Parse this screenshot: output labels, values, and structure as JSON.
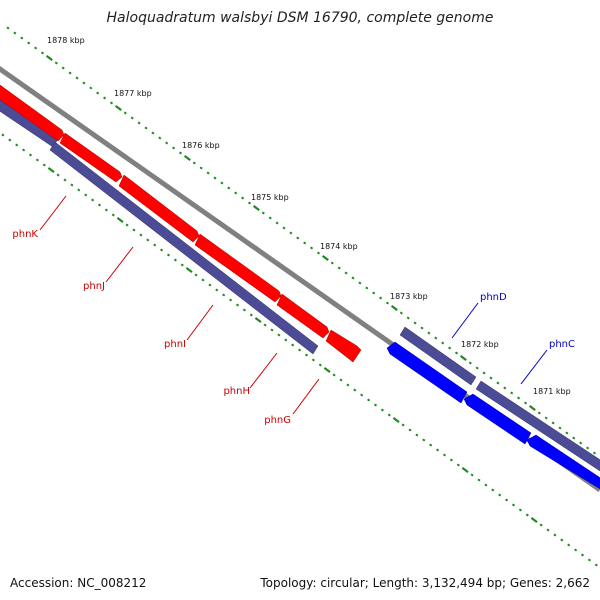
{
  "title": "Haloquadratum walsbyi DSM 16790, complete genome",
  "colors": {
    "tick": "#1f8a1f",
    "backbone": "#808080",
    "forward_gene": "#ff0000",
    "reverse_gene": "#0000ff",
    "cds": "#4b4b96",
    "forward_label": "#cc0000",
    "reverse_label": "#0000cc"
  },
  "ticks": [
    {
      "label": "1878 kbp"
    },
    {
      "label": "1877 kbp"
    },
    {
      "label": "1876 kbp"
    },
    {
      "label": "1875 kbp"
    },
    {
      "label": "1874 kbp"
    },
    {
      "label": "1873 kbp"
    },
    {
      "label": "1872 kbp"
    },
    {
      "label": "1871 kbp"
    }
  ],
  "genes": [
    {
      "name": "phnK",
      "strand": "forward"
    },
    {
      "name": "phnJ",
      "strand": "forward"
    },
    {
      "name": "phnI",
      "strand": "forward"
    },
    {
      "name": "phnH",
      "strand": "forward"
    },
    {
      "name": "phnG",
      "strand": "forward"
    },
    {
      "name": "phnD",
      "strand": "reverse"
    },
    {
      "name": "phnC",
      "strand": "reverse"
    }
  ],
  "footer": {
    "accession": "Accession: NC_008212",
    "summary": "Topology: circular; Length: 3,132,494 bp; Genes: 2,662"
  }
}
